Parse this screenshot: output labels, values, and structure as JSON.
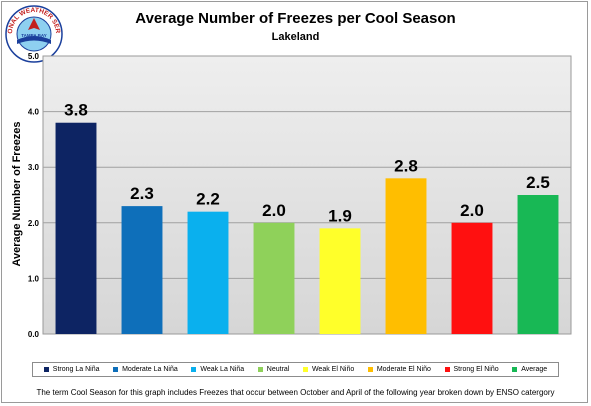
{
  "chart_data": {
    "type": "bar",
    "title": "Average Number of Freezes per Cool Season",
    "subtitle": "Lakeland",
    "xlabel": "",
    "ylabel": "Average Number of Freezes",
    "ylim": [
      0,
      5
    ],
    "yticks": [
      "0.0",
      "1.0",
      "2.0",
      "3.0",
      "4.0",
      "5.0"
    ],
    "grid": true,
    "legend_position": "bottom",
    "categories": [
      "Strong La Niña",
      "Moderate La Niña",
      "Weak La Niña",
      "Neutral",
      "Weak El Niño",
      "Moderate El Niño",
      "Strong El Niño",
      "Average"
    ],
    "values": [
      3.8,
      2.3,
      2.2,
      2.0,
      1.9,
      2.8,
      2.0,
      2.5
    ],
    "data_labels": [
      "3.8",
      "2.3",
      "2.2",
      "2.0",
      "1.9",
      "2.8",
      "2.0",
      "2.5"
    ],
    "colors": [
      "#0d2463",
      "#0e6fba",
      "#0ab0ee",
      "#8fd15a",
      "#ffff2a",
      "#ffbe00",
      "#ff1010",
      "#18b855"
    ]
  },
  "footnote": "The term Cool Season for this graph includes Freezes that occur between October and April of the following year broken down by ENSO catergory",
  "logo": {
    "text": "NATIONAL WEATHER SERVICE",
    "center_text": "TAMPA BAY",
    "colors": [
      "#1a3f9c",
      "#8ed0f0",
      "#c21f1f"
    ]
  }
}
